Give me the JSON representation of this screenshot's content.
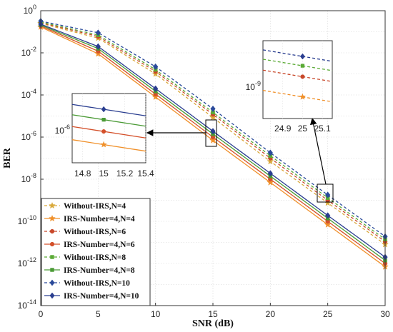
{
  "chart_data": {
    "type": "line",
    "title": "",
    "xlabel": "SNR (dB)",
    "ylabel": "BER",
    "xlim": [
      0,
      30
    ],
    "ylim_log10": [
      -14,
      0
    ],
    "y_scale": "log",
    "grid": true,
    "legend_position": "bottom-left",
    "x_ticks": [
      0,
      5,
      10,
      15,
      20,
      25,
      30
    ],
    "x_tick_labels": [
      "0",
      "5",
      "10",
      "15",
      "20",
      "25",
      "30"
    ],
    "y_ticks_log10": [
      0,
      -2,
      -4,
      -6,
      -8,
      -10,
      -12,
      -14
    ],
    "y_tick_labels": [
      {
        "base": "10",
        "exp": "0"
      },
      {
        "base": "10",
        "exp": "-2"
      },
      {
        "base": "10",
        "exp": "-4"
      },
      {
        "base": "10",
        "exp": "-6"
      },
      {
        "base": "10",
        "exp": "-8"
      },
      {
        "base": "10",
        "exp": "-10"
      },
      {
        "base": "10",
        "exp": "-12"
      },
      {
        "base": "10",
        "exp": "-14"
      }
    ],
    "marker_x": [
      0,
      5,
      10,
      15,
      20,
      25,
      30
    ],
    "series": [
      {
        "name": "Without-IRS,N=4",
        "color": "#d9a93a",
        "dash": true,
        "marker": "star",
        "values": [
          0.25,
          0.05,
          0.001,
          8.5e-06,
          7e-08,
          7.5e-10,
          8e-12
        ]
      },
      {
        "name": "IRS-Number=4,N=4",
        "color": "#f0902a",
        "dash": false,
        "marker": "star",
        "values": [
          0.17,
          0.009,
          8e-05,
          7e-07,
          7e-09,
          7e-11,
          7e-13
        ]
      },
      {
        "name": "Without-IRS,N=6",
        "color": "#c8482a",
        "dash": true,
        "marker": "circle",
        "values": [
          0.27,
          0.06,
          0.0013,
          1.2e-05,
          1e-07,
          1e-09,
          1.1e-11
        ]
      },
      {
        "name": "IRS-Number=4,N=6",
        "color": "#d4502a",
        "dash": false,
        "marker": "circle",
        "values": [
          0.19,
          0.012,
          0.00011,
          1e-06,
          1e-08,
          1e-10,
          1e-12
        ]
      },
      {
        "name": "Without-IRS,N=8",
        "color": "#5aaa35",
        "dash": true,
        "marker": "square",
        "values": [
          0.29,
          0.07,
          0.0016,
          1.5e-05,
          1.3e-07,
          1.3e-09,
          1.4e-11
        ]
      },
      {
        "name": "IRS-Number=4,N=8",
        "color": "#4a9a35",
        "dash": false,
        "marker": "square",
        "values": [
          0.21,
          0.016,
          0.00015,
          1.4e-06,
          1.4e-08,
          1.4e-10,
          1.4e-12
        ]
      },
      {
        "name": "Without-IRS,N=10",
        "color": "#2a4a9a",
        "dash": true,
        "marker": "diamond",
        "values": [
          0.32,
          0.09,
          0.0022,
          2.2e-05,
          1.8e-07,
          1.8e-09,
          1.9e-11
        ]
      },
      {
        "name": "IRS-Number=4,N=10",
        "color": "#2a3e90",
        "dash": false,
        "marker": "diamond",
        "values": [
          0.23,
          0.02,
          0.0002,
          1.9e-06,
          1.9e-08,
          1.9e-10,
          2e-12
        ]
      }
    ],
    "insets": [
      {
        "id": "inset-15",
        "x_range": [
          14.7,
          15.4
        ],
        "x_ticks": [
          14.8,
          15,
          15.2,
          15.4
        ],
        "x_tick_labels": [
          "14.8",
          "15",
          "15.2",
          "15.4"
        ],
        "y_label": {
          "base": "10",
          "exp": "-6"
        },
        "series": [
          {
            "color": "#2a3e90",
            "dash": false,
            "marker": "diamond",
            "y": 0.26
          },
          {
            "color": "#4a9a35",
            "dash": false,
            "marker": "square",
            "y": 0.41
          },
          {
            "color": "#d4502a",
            "dash": false,
            "marker": "circle",
            "y": 0.58
          },
          {
            "color": "#f0902a",
            "dash": false,
            "marker": "star",
            "y": 0.77
          }
        ]
      },
      {
        "id": "inset-25",
        "x_range": [
          24.8,
          25.15
        ],
        "x_ticks": [
          24.9,
          25,
          25.1
        ],
        "x_tick_labels": [
          "24.9",
          "25",
          "25.1"
        ],
        "y_label": {
          "base": "10",
          "exp": "-9"
        },
        "series": [
          {
            "color": "#2a3e90",
            "dash": true,
            "marker": "diamond",
            "y": 0.21
          },
          {
            "color": "#5aaa35",
            "dash": true,
            "marker": "square",
            "y": 0.33
          },
          {
            "color": "#c8482a",
            "dash": true,
            "marker": "circle",
            "y": 0.47
          },
          {
            "color": "#f0902a",
            "dash": true,
            "marker": "star",
            "y": 0.73
          }
        ]
      }
    ]
  }
}
